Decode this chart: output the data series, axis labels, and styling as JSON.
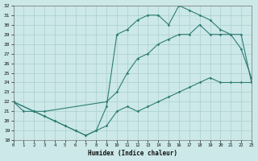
{
  "xlabel": "Humidex (Indice chaleur)",
  "bg_color": "#cce8e8",
  "line_color": "#2d7d74",
  "grid_color": "#aacfcf",
  "xlim": [
    0,
    23
  ],
  "ylim": [
    18,
    32
  ],
  "xticks": [
    0,
    1,
    2,
    3,
    4,
    5,
    6,
    7,
    8,
    9,
    10,
    11,
    12,
    13,
    14,
    15,
    16,
    17,
    18,
    19,
    20,
    21,
    22,
    23
  ],
  "yticks": [
    18,
    19,
    20,
    21,
    22,
    23,
    24,
    25,
    26,
    27,
    28,
    29,
    30,
    31,
    32
  ],
  "line_min_x": [
    0,
    1,
    2,
    3,
    4,
    5,
    6,
    7,
    8,
    9,
    10,
    11,
    12,
    13,
    14,
    15,
    16,
    17,
    18,
    19,
    20,
    21,
    22,
    23
  ],
  "line_min_y": [
    22,
    21,
    21,
    20.5,
    20,
    19.5,
    19,
    18.5,
    19,
    19.5,
    21,
    21.5,
    21,
    21.5,
    22,
    22.5,
    23,
    23.5,
    24,
    24.5,
    24,
    24,
    24,
    24
  ],
  "line_max_x": [
    0,
    2,
    3,
    4,
    5,
    6,
    7,
    8,
    9,
    10,
    11,
    12,
    13,
    14,
    15,
    16,
    17,
    18,
    19,
    20,
    21,
    22,
    23
  ],
  "line_max_y": [
    22,
    21,
    20.5,
    20,
    19.5,
    19,
    18.5,
    19,
    21.5,
    29,
    29.5,
    30.5,
    31,
    31,
    30,
    32,
    31.5,
    31,
    30.5,
    29.5,
    29,
    29,
    24
  ],
  "line_mid_x": [
    0,
    2,
    3,
    9,
    10,
    11,
    12,
    13,
    14,
    15,
    16,
    17,
    18,
    19,
    20,
    21,
    22,
    23
  ],
  "line_mid_y": [
    22,
    21,
    21,
    22,
    23,
    25,
    26.5,
    27,
    28,
    28.5,
    29,
    29,
    30,
    29,
    29,
    29,
    27.5,
    24.5
  ]
}
